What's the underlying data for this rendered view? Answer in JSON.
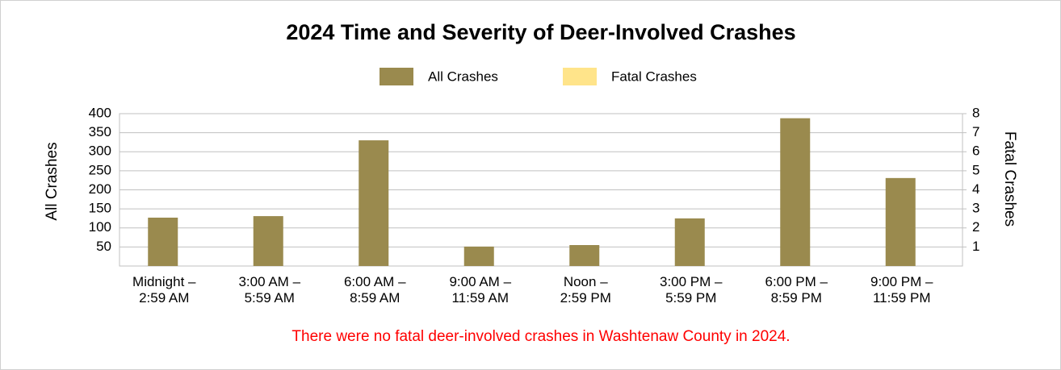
{
  "chart_data": {
    "type": "bar",
    "title": "2024 Time and Severity of Deer-Involved Crashes",
    "categories": [
      "Midnight –\n2:59 AM",
      "3:00 AM –\n5:59 AM",
      "6:00 AM –\n8:59 AM",
      "9:00 AM –\n11:59 AM",
      "Noon –\n2:59 PM",
      "3:00 PM –\n5:59 PM",
      "6:00 PM –\n8:59 PM",
      "9:00 PM –\n11:59 PM"
    ],
    "series": [
      {
        "name": "All Crashes",
        "color": "#9a8a4e",
        "values": [
          127,
          131,
          330,
          51,
          55,
          125,
          388,
          231
        ]
      },
      {
        "name": "Fatal Crashes",
        "color": "#ffe48a",
        "axis": "y2",
        "values": [
          0,
          0,
          0,
          0,
          0,
          0,
          0,
          0
        ]
      }
    ],
    "ylabel": "All Crashes",
    "y2label": "Fatal Crashes",
    "ylim": [
      0,
      400
    ],
    "yticks": [
      50,
      100,
      150,
      200,
      250,
      300,
      350,
      400
    ],
    "y2lim": [
      0,
      8
    ],
    "y2ticks": [
      1,
      2,
      3,
      4,
      5,
      6,
      7,
      8
    ],
    "grid": true,
    "legend": "top",
    "annotation": "There were no fatal deer-involved crashes in Washtenaw County in 2024."
  }
}
